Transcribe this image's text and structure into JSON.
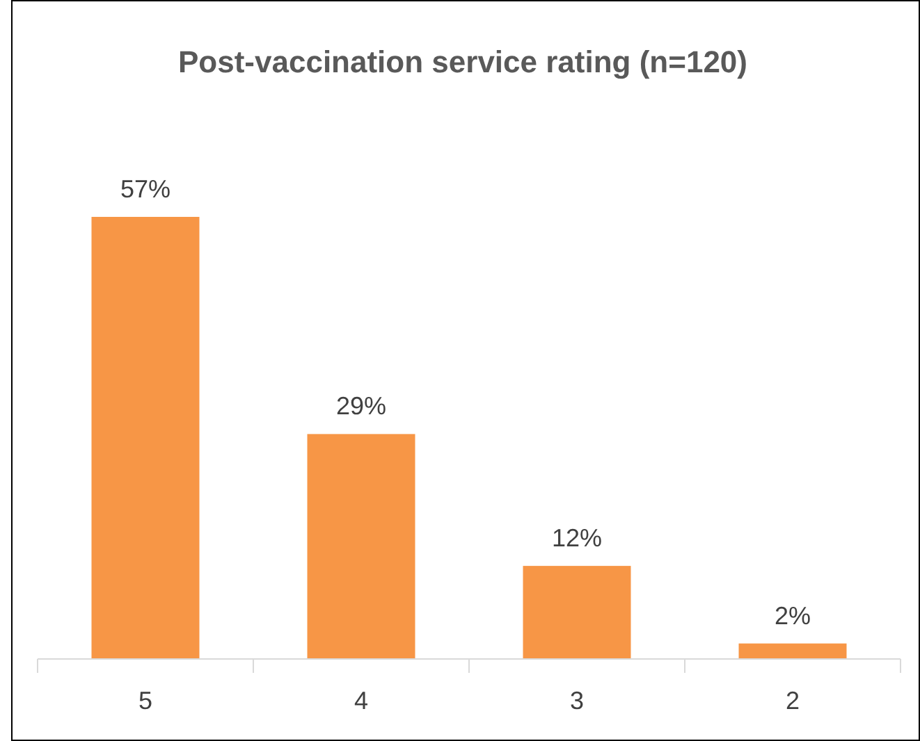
{
  "chart_data": {
    "type": "bar",
    "title": "Post-vaccination service rating (n=120)",
    "categories": [
      "5",
      "4",
      "3",
      "2"
    ],
    "values": [
      57,
      29,
      12,
      2
    ],
    "color": "#f79646",
    "value_labels": [
      "57%",
      "29%",
      "12%",
      "2%"
    ]
  }
}
